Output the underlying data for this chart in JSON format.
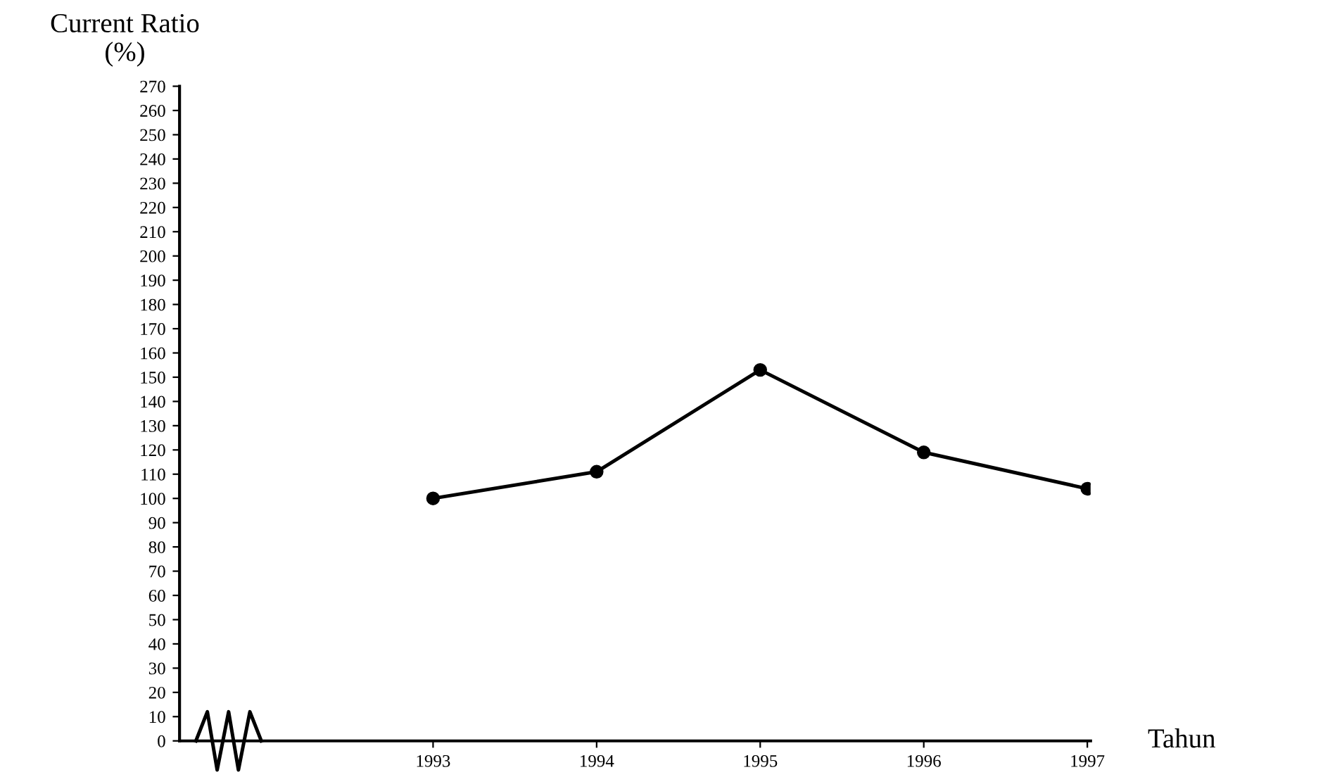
{
  "chart_data": {
    "type": "line",
    "ylabel": "Current Ratio\n(%)",
    "xlabel": "Tahun",
    "categories": [
      "1993",
      "1994",
      "1995",
      "1996",
      "1997"
    ],
    "series": [
      {
        "color": "#000000",
        "values": [
          100,
          111,
          153,
          119,
          104
        ]
      }
    ],
    "ylim": [
      0,
      270
    ],
    "yticks": [
      0,
      10,
      20,
      30,
      40,
      50,
      60,
      70,
      80,
      90,
      100,
      110,
      120,
      130,
      140,
      150,
      160,
      170,
      180,
      190,
      200,
      210,
      220,
      230,
      240,
      250,
      260,
      270
    ],
    "marker": "circle",
    "line_style": "solid",
    "grid": false,
    "legend": false
  }
}
